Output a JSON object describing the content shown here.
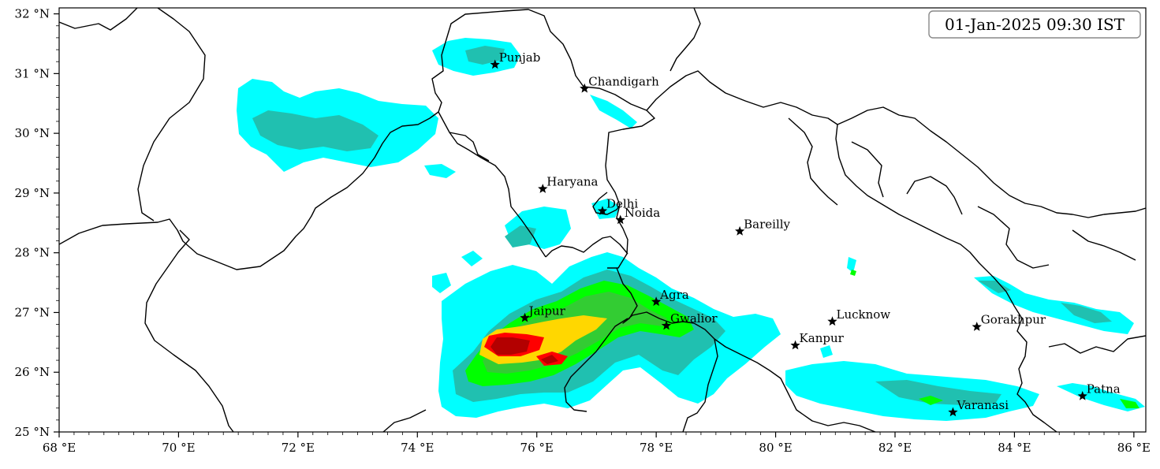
{
  "timestamp": "01-Jan-2025 09:30 IST",
  "x_ticks": [
    {
      "value": 68,
      "label": "68 °E"
    },
    {
      "value": 70,
      "label": "70 °E"
    },
    {
      "value": 72,
      "label": "72 °E"
    },
    {
      "value": 74,
      "label": "74 °E"
    },
    {
      "value": 76,
      "label": "76 °E"
    },
    {
      "value": 78,
      "label": "78 °E"
    },
    {
      "value": 80,
      "label": "80 °E"
    },
    {
      "value": 82,
      "label": "82 °E"
    },
    {
      "value": 84,
      "label": "84 °E"
    },
    {
      "value": 86,
      "label": "86 °E"
    }
  ],
  "y_ticks": [
    {
      "value": 25,
      "label": "25 °N"
    },
    {
      "value": 26,
      "label": "26 °N"
    },
    {
      "value": 27,
      "label": "27 °N"
    },
    {
      "value": 28,
      "label": "28 °N"
    },
    {
      "value": 29,
      "label": "29 °N"
    },
    {
      "value": 30,
      "label": "30 °N"
    },
    {
      "value": 31,
      "label": "31 °N"
    },
    {
      "value": 32,
      "label": "32 °N"
    }
  ],
  "extent": {
    "lon": [
      68,
      86.2
    ],
    "lat": [
      25,
      32.1
    ]
  },
  "cities": [
    {
      "name": "Punjab",
      "lon": 75.3,
      "lat": 31.15
    },
    {
      "name": "Chandigarh",
      "lon": 76.8,
      "lat": 30.75
    },
    {
      "name": "Haryana",
      "lon": 76.1,
      "lat": 29.07
    },
    {
      "name": "Delhi",
      "lon": 77.1,
      "lat": 28.7
    },
    {
      "name": "Noida",
      "lon": 77.4,
      "lat": 28.55
    },
    {
      "name": "Bareilly",
      "lon": 79.4,
      "lat": 28.36
    },
    {
      "name": "Agra",
      "lon": 78.0,
      "lat": 27.18
    },
    {
      "name": "Jaipur",
      "lon": 75.8,
      "lat": 26.91
    },
    {
      "name": "Gwalior",
      "lon": 78.17,
      "lat": 26.78
    },
    {
      "name": "Lucknow",
      "lon": 80.95,
      "lat": 26.85
    },
    {
      "name": "Kanpur",
      "lon": 80.33,
      "lat": 26.45
    },
    {
      "name": "Gorakhpur",
      "lon": 83.37,
      "lat": 26.76
    },
    {
      "name": "Varanasi",
      "lon": 82.97,
      "lat": 25.33
    },
    {
      "name": "Patna",
      "lon": 85.14,
      "lat": 25.6
    }
  ],
  "colors": {
    "level1": "#00ffff",
    "level2": "#20c0b0",
    "level3": "#00ff00",
    "level4": "#33cc33",
    "level5": "#ffd700",
    "level6": "#ff0000",
    "level7": "#b30000",
    "border": "#000000"
  }
}
